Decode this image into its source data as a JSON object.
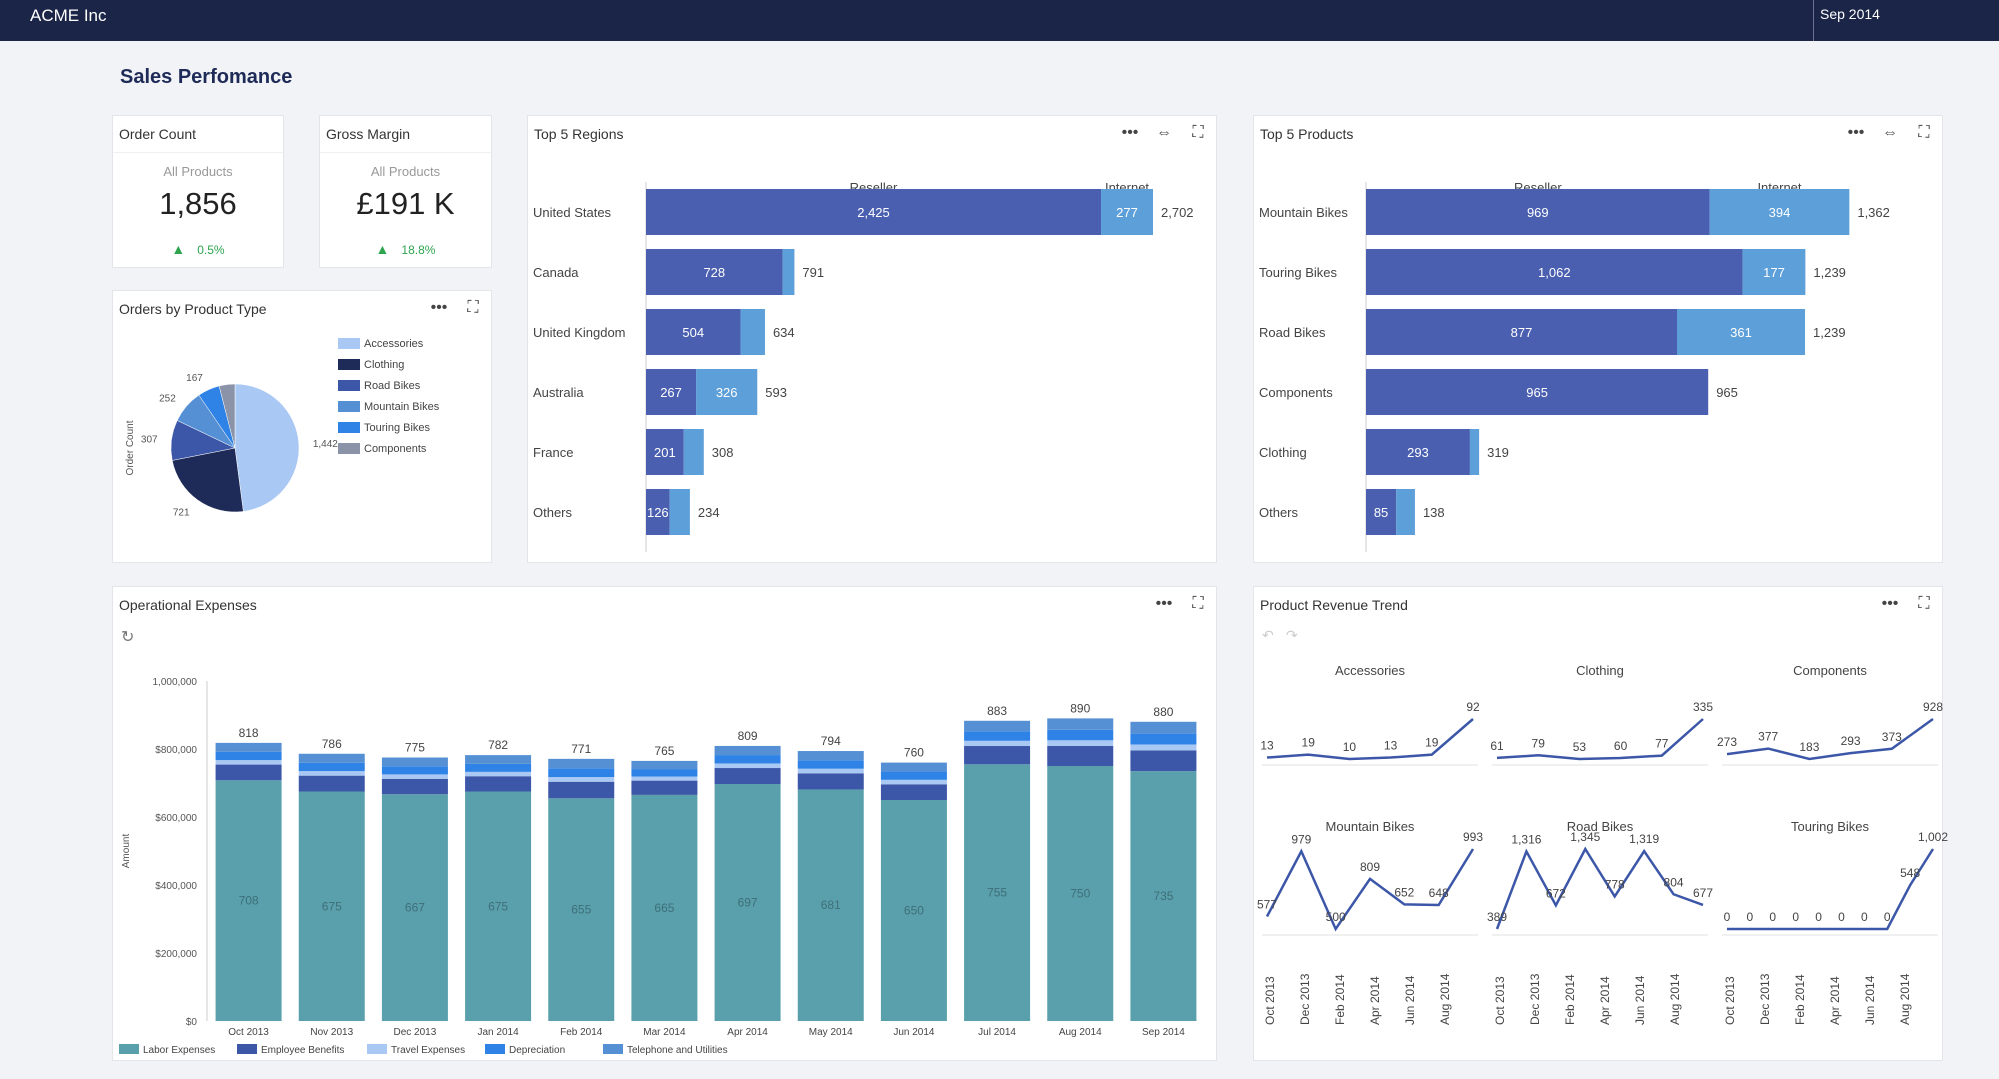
{
  "app": {
    "brand": "ACME Inc",
    "period": "Sep 2014",
    "page_title": "Sales Perfomance"
  },
  "colors": {
    "navy": "#1b2547",
    "reseller": "#4a5fb0",
    "internet": "#5d9fd9",
    "labor": "#5aa0ac",
    "employee": "#3c57a8",
    "travel": "#a9c8f4",
    "depreciation": "#2f83e6",
    "telephone": "#5590d4"
  },
  "icons": {
    "more": "more-icon",
    "link": "link-icon",
    "expand": "expand-icon",
    "undo": "undo-icon",
    "redo": "redo-icon",
    "refresh": "refresh-icon",
    "up": "triangle-up-icon"
  },
  "kpis": [
    {
      "title": "Order Count",
      "subtitle": "All Products",
      "value": "1,856",
      "change": "0.5%"
    },
    {
      "title": "Gross Margin",
      "subtitle": "All Products",
      "value": "£191 K",
      "change": "18.8%"
    }
  ],
  "pie": {
    "title": "Orders by Product Type",
    "ylabel": "Order Count",
    "chart_data": {
      "type": "pie",
      "ylabel": "Order Count",
      "slices": [
        {
          "name": "Accessories",
          "value": 1442,
          "label": "1,442",
          "color": "#a9c8f4"
        },
        {
          "name": "Clothing",
          "value": 721,
          "label": "721",
          "color": "#1e2a57"
        },
        {
          "name": "Road Bikes",
          "value": 307,
          "label": "307",
          "color": "#3c57a8"
        },
        {
          "name": "Mountain Bikes",
          "value": 252,
          "label": "252",
          "color": "#5590d4"
        },
        {
          "name": "Touring Bikes",
          "value": 167,
          "label": "167",
          "color": "#2f83e6"
        },
        {
          "name": "Components",
          "value": 120,
          "label": "",
          "color": "#8a93a8"
        }
      ]
    }
  },
  "regions": {
    "title": "Top 5 Regions",
    "chart_data": {
      "type": "bar",
      "orientation": "horizontal",
      "stacked": true,
      "categories": [
        "United States",
        "Canada",
        "United Kingdom",
        "Australia",
        "France",
        "Others"
      ],
      "series": [
        {
          "name": "Reseller",
          "values": [
            2425,
            728,
            504,
            267,
            201,
            126
          ],
          "labels": [
            "2,425",
            "728",
            "504",
            "267",
            "201",
            "126"
          ]
        },
        {
          "name": "Internet",
          "values": [
            277,
            63,
            130,
            326,
            107,
            108
          ],
          "labels": [
            "277",
            "",
            "",
            "326",
            "",
            ""
          ]
        }
      ],
      "totals": [
        "2,702",
        "791",
        "634",
        "593",
        "308",
        "234"
      ],
      "xmax": 2702
    }
  },
  "products": {
    "title": "Top 5 Products",
    "chart_data": {
      "type": "bar",
      "orientation": "horizontal",
      "stacked": true,
      "categories": [
        "Mountain Bikes",
        "Touring Bikes",
        "Road Bikes",
        "Components",
        "Clothing",
        "Others"
      ],
      "series": [
        {
          "name": "Reseller",
          "values": [
            969,
            1062,
            877,
            965,
            293,
            85
          ],
          "labels": [
            "969",
            "1,062",
            "877",
            "965",
            "293",
            "85"
          ]
        },
        {
          "name": "Internet",
          "values": [
            394,
            177,
            361,
            0,
            26,
            53
          ],
          "labels": [
            "394",
            "177",
            "361",
            "",
            "",
            ""
          ]
        }
      ],
      "totals": [
        "1,362",
        "1,239",
        "1,239",
        "965",
        "319",
        "138"
      ],
      "xmax": 1362
    }
  },
  "opex": {
    "title": "Operational Expenses",
    "chart_data": {
      "type": "bar",
      "stacked": true,
      "ylabel": "Amount",
      "ylim": [
        0,
        1000000
      ],
      "yticks": [
        "$0",
        "$200,000",
        "$400,000",
        "$600,000",
        "$800,000",
        "1,000,000"
      ],
      "categories": [
        "Oct 2013",
        "Nov 2013",
        "Dec 2013",
        "Jan 2014",
        "Feb 2014",
        "Mar 2014",
        "Apr 2014",
        "May 2014",
        "Jun 2014",
        "Jul 2014",
        "Aug 2014",
        "Sep 2014"
      ],
      "labor": [
        708,
        675,
        667,
        675,
        655,
        665,
        697,
        681,
        650,
        755,
        750,
        735
      ],
      "totals": [
        818,
        786,
        775,
        782,
        771,
        765,
        809,
        794,
        760,
        883,
        890,
        880
      ],
      "series": [
        {
          "name": "Labor Expenses"
        },
        {
          "name": "Employee Benefits"
        },
        {
          "name": "Travel Expenses"
        },
        {
          "name": "Depreciation"
        },
        {
          "name": "Telephone and Utilities"
        }
      ]
    }
  },
  "trend": {
    "title": "Product Revenue Trend",
    "chart_data": {
      "type": "line",
      "x": [
        "Oct 2013",
        "Dec 2013",
        "Feb 2014",
        "Apr 2014",
        "Jun 2014",
        "Aug 2014"
      ],
      "panels": [
        {
          "name": "Accessories",
          "values": [
            13,
            19,
            10,
            13,
            19,
            92
          ],
          "labels": [
            "13",
            "19",
            "10",
            "13",
            "19",
            "92"
          ]
        },
        {
          "name": "Clothing",
          "values": [
            61,
            79,
            53,
            60,
            77,
            335
          ],
          "labels": [
            "61",
            "79",
            "53",
            "60",
            "77",
            "335"
          ]
        },
        {
          "name": "Components",
          "values": [
            273,
            377,
            183,
            293,
            373,
            928
          ],
          "labels": [
            "273",
            "377",
            "183",
            "293",
            "373",
            "928"
          ]
        },
        {
          "name": "Mountain Bikes",
          "values": [
            577,
            979,
            500,
            809,
            652,
            648,
            993
          ],
          "labels": [
            "577",
            "979",
            "500",
            "809",
            "652",
            "648",
            "993"
          ]
        },
        {
          "name": "Road Bikes",
          "values": [
            389,
            1316,
            672,
            1345,
            778,
            1319,
            804,
            677
          ],
          "labels": [
            "389",
            "1,316",
            "672",
            "1,345",
            "778",
            "1,319",
            "804",
            "677"
          ]
        },
        {
          "name": "Touring Bikes",
          "values": [
            0,
            0,
            0,
            0,
            0,
            0,
            0,
            0,
            548,
            1002
          ],
          "labels": [
            "0",
            "0",
            "0",
            "0",
            "0",
            "0",
            "0",
            "0",
            "548",
            "1,002"
          ]
        }
      ]
    }
  }
}
